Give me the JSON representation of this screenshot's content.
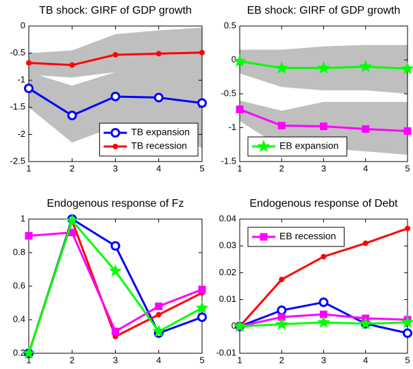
{
  "chart_data": [
    {
      "type": "line",
      "title": "TB shock: GIRF of GDP growth",
      "x": [
        1,
        2,
        3,
        4,
        5
      ],
      "xlim": [
        1,
        5
      ],
      "xticks": [
        1,
        2,
        3,
        4,
        5
      ],
      "ylim": [
        -2.5,
        0
      ],
      "yticks": [
        -2.5,
        -2,
        -1.5,
        -1,
        -0.5,
        0
      ],
      "legend": "lower right",
      "bands": [
        {
          "color": "#bfbfbf",
          "upper": [
            -0.85,
            -1.1,
            -0.85,
            -0.85,
            -0.9
          ],
          "lower": [
            -1.5,
            -2.15,
            -1.85,
            -1.9,
            -2.25
          ]
        },
        {
          "color": "#bfbfbf",
          "upper": [
            -0.5,
            -0.45,
            -0.15,
            -0.08,
            -0.03
          ],
          "lower": [
            -0.9,
            -0.95,
            -0.85,
            -0.85,
            -0.9
          ]
        }
      ],
      "series": [
        {
          "name": "TB expansion",
          "color": "#0000ff",
          "marker": "o",
          "values": [
            -1.15,
            -1.65,
            -1.3,
            -1.32,
            -1.42
          ]
        },
        {
          "name": "TB recession",
          "color": "#ff0000",
          "marker": ".",
          "values": [
            -0.68,
            -0.72,
            -0.53,
            -0.51,
            -0.49
          ]
        }
      ]
    },
    {
      "type": "line",
      "title": "EB shock: GIRF of GDP growth",
      "x": [
        1,
        2,
        3,
        4,
        5
      ],
      "xlim": [
        1,
        5
      ],
      "xticks": [
        1,
        2,
        3,
        4,
        5
      ],
      "ylim": [
        -1.5,
        0.5
      ],
      "yticks": [
        -1.5,
        -1,
        -0.5,
        0,
        0.5
      ],
      "legend": "lower left",
      "bands": [
        {
          "color": "#bfbfbf",
          "upper": [
            0.15,
            0.15,
            0.2,
            0.22,
            0.22
          ],
          "lower": [
            -0.2,
            -0.4,
            -0.45,
            -0.45,
            -0.5
          ]
        },
        {
          "color": "#bfbfbf",
          "upper": [
            -0.6,
            -0.75,
            -0.62,
            -0.62,
            -0.62
          ],
          "lower": [
            -0.9,
            -1.3,
            -1.3,
            -1.35,
            -1.4
          ]
        }
      ],
      "series": [
        {
          "color": "#ff00ff",
          "marker": "s",
          "values": [
            -0.73,
            -0.97,
            -0.98,
            -1.02,
            -1.05
          ]
        },
        {
          "name": "EB expansion",
          "color": "#00ff00",
          "marker": "*",
          "values": [
            -0.02,
            -0.12,
            -0.12,
            -0.1,
            -0.13
          ]
        }
      ]
    },
    {
      "type": "line",
      "title": "Endogenous response of Fz",
      "x": [
        1,
        2,
        3,
        4,
        5
      ],
      "xlim": [
        1,
        5
      ],
      "xticks": [
        1,
        2,
        3,
        4,
        5
      ],
      "ylim": [
        0.2,
        1
      ],
      "yticks": [
        0.2,
        0.4,
        0.6,
        0.8,
        1
      ],
      "series": [
        {
          "color": "#0000ff",
          "marker": "o",
          "values": [
            0.2,
            1.0,
            0.84,
            0.32,
            0.415
          ]
        },
        {
          "color": "#ff0000",
          "marker": ".",
          "values": [
            0.2,
            0.99,
            0.3,
            0.43,
            0.56
          ]
        },
        {
          "color": "#ff00ff",
          "marker": "s",
          "values": [
            0.9,
            0.92,
            0.33,
            0.48,
            0.58
          ]
        },
        {
          "color": "#00ff00",
          "marker": "*",
          "values": [
            0.2,
            0.99,
            0.69,
            0.33,
            0.47
          ]
        }
      ]
    },
    {
      "type": "line",
      "title": "Endogenous response of Debt",
      "x": [
        1,
        2,
        3,
        4,
        5
      ],
      "xlim": [
        1,
        5
      ],
      "xticks": [
        1,
        2,
        3,
        4,
        5
      ],
      "ylim": [
        -0.01,
        0.04
      ],
      "yticks": [
        -0.01,
        0,
        0.01,
        0.02,
        0.03,
        0.04
      ],
      "legend": "upper left",
      "series": [
        {
          "color": "#ff0000",
          "marker": ".",
          "values": [
            0,
            0.0175,
            0.026,
            0.031,
            0.0365
          ]
        },
        {
          "color": "#0000ff",
          "marker": "o",
          "values": [
            0,
            0.006,
            0.009,
            0.001,
            -0.0025
          ]
        },
        {
          "name": "EB recession",
          "color": "#ff00ff",
          "marker": "s",
          "values": [
            0,
            0.0035,
            0.0045,
            0.003,
            0.0025
          ]
        },
        {
          "color": "#00ff00",
          "marker": "*",
          "values": [
            0,
            0.0008,
            0.0015,
            0.001,
            0.0015
          ]
        }
      ]
    }
  ]
}
